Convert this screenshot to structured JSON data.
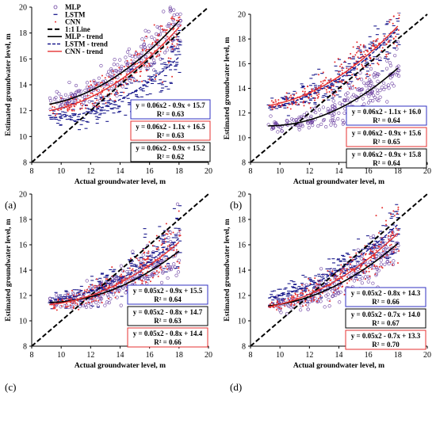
{
  "legend": {
    "markers": [
      {
        "label": "MLP",
        "color": "#6b3fa0",
        "symbol": "circle"
      },
      {
        "label": "LSTM",
        "color": "#1a1a8c",
        "symbol": "dash"
      },
      {
        "label": "CNN",
        "color": "#e53030",
        "symbol": "dot"
      }
    ],
    "lines": [
      {
        "label": "1:1 Line",
        "color": "#000000",
        "dash": "6,3",
        "width": 2
      },
      {
        "label": "MLP - trend",
        "color": "#000000",
        "dash": "",
        "width": 1.6
      },
      {
        "label": "LSTM - trend",
        "color": "#1a1a8c",
        "dash": "4,2",
        "width": 1.4
      },
      {
        "label": "CNN - trend",
        "color": "#e53030",
        "dash": "",
        "width": 1.4
      }
    ]
  },
  "chart_data": [
    {
      "type": "scatter",
      "panel_label": "(a)",
      "xlabel": "Actual groundwater level, m",
      "ylabel": "Estimated groundwater level, m",
      "xlim": [
        8,
        20
      ],
      "ylim": [
        8,
        20
      ],
      "xticks": [
        8,
        10,
        12,
        14,
        16,
        18,
        20
      ],
      "yticks": [
        8,
        10,
        12,
        14,
        16,
        18,
        20
      ],
      "grid": false,
      "show_legend": true,
      "series": [
        {
          "name": "MLP",
          "color": "#6b3fa0",
          "trend": {
            "a": 0.06,
            "b": -0.9,
            "c": 15.7
          },
          "equation": "y = 0.06x2 - 0.9x + 15.7",
          "r2": "R² = 0.63",
          "box_color": "#3030c0"
        },
        {
          "name": "LSTM",
          "color": "#1a1a8c",
          "trend": {
            "a": 0.06,
            "b": -1.1,
            "c": 16.5
          },
          "equation": "y = 0.06x2 - 1.1x + 16.5",
          "r2": "R² = 0.63",
          "box_color": "#e53030"
        },
        {
          "name": "CNN",
          "color": "#e53030",
          "trend": {
            "a": 0.06,
            "b": -0.9,
            "c": 15.2
          },
          "equation": "y = 0.06x2 - 0.9x + 15.2",
          "r2": "R² = 0.62",
          "box_color": "#000000"
        }
      ]
    },
    {
      "type": "scatter",
      "panel_label": "(b)",
      "xlabel": "Actual groundwater level, m",
      "ylabel": "Estimated groundwater level, m",
      "xlim": [
        8,
        20
      ],
      "ylim": [
        8,
        20
      ],
      "xticks": [
        8,
        10,
        12,
        14,
        16,
        18,
        20
      ],
      "yticks": [
        8,
        10,
        12,
        14,
        16,
        18,
        20
      ],
      "grid": false,
      "show_legend": false,
      "series": [
        {
          "name": "MLP",
          "color": "#6b3fa0",
          "trend": {
            "a": 0.06,
            "b": -1.1,
            "c": 16.0
          },
          "equation": "y = 0.06x2 - 1.1x + 16.0",
          "r2": "R² = 0.64",
          "box_color": "#3030c0"
        },
        {
          "name": "LSTM",
          "color": "#1a1a8c",
          "trend": {
            "a": 0.06,
            "b": -0.9,
            "c": 15.6
          },
          "equation": "y = 0.06x2 - 0.9x + 15.6",
          "r2": "R² = 0.65",
          "box_color": "#e53030"
        },
        {
          "name": "CNN",
          "color": "#e53030",
          "trend": {
            "a": 0.06,
            "b": -0.9,
            "c": 15.8
          },
          "equation": "y = 0.06x2 - 0.9x + 15.8",
          "r2": "R² = 0.64",
          "box_color": "#000000"
        }
      ]
    },
    {
      "type": "scatter",
      "panel_label": "(c)",
      "xlabel": "Actual groundwater level, m",
      "ylabel": "Estimated groundwater level, m",
      "xlim": [
        8,
        20
      ],
      "ylim": [
        8,
        20
      ],
      "xticks": [
        8,
        10,
        12,
        14,
        16,
        18,
        20
      ],
      "yticks": [
        8,
        10,
        12,
        14,
        16,
        18,
        20
      ],
      "grid": false,
      "show_legend": false,
      "series": [
        {
          "name": "MLP",
          "color": "#6b3fa0",
          "trend": {
            "a": 0.05,
            "b": -0.9,
            "c": 15.5
          },
          "equation": "y = 0.05x2 - 0.9x + 15.5",
          "r2": "R² = 0.64",
          "box_color": "#3030c0"
        },
        {
          "name": "LSTM",
          "color": "#1a1a8c",
          "trend": {
            "a": 0.05,
            "b": -0.8,
            "c": 14.7
          },
          "equation": "y = 0.05x2 - 0.8x + 14.7",
          "r2": "R² = 0.63",
          "box_color": "#000000"
        },
        {
          "name": "CNN",
          "color": "#e53030",
          "trend": {
            "a": 0.05,
            "b": -0.8,
            "c": 14.4
          },
          "equation": "y = 0.05x2 - 0.8x + 14.4",
          "r2": "R² = 0.66",
          "box_color": "#e53030"
        }
      ]
    },
    {
      "type": "scatter",
      "panel_label": "(d)",
      "xlabel": "Actual groundwater level, m",
      "ylabel": "Estimated groundwater level, m",
      "xlim": [
        8,
        20
      ],
      "ylim": [
        8,
        20
      ],
      "xticks": [
        8,
        10,
        12,
        14,
        16,
        18,
        20
      ],
      "yticks": [
        8,
        10,
        12,
        14,
        16,
        18,
        20
      ],
      "grid": false,
      "show_legend": false,
      "series": [
        {
          "name": "MLP",
          "color": "#6b3fa0",
          "trend": {
            "a": 0.05,
            "b": -0.8,
            "c": 14.3
          },
          "equation": "y = 0.05x2 - 0.8x + 14.3",
          "r2": "R² = 0.66",
          "box_color": "#3030c0"
        },
        {
          "name": "LSTM",
          "color": "#1a1a8c",
          "trend": {
            "a": 0.05,
            "b": -0.7,
            "c": 14.0
          },
          "equation": "y = 0.05x2 - 0.7x + 14.0",
          "r2": "R² = 0.67",
          "box_color": "#000000"
        },
        {
          "name": "CNN",
          "color": "#e53030",
          "trend": {
            "a": 0.05,
            "b": -0.7,
            "c": 13.3
          },
          "equation": "y = 0.05x2 - 0.7x + 13.3",
          "r2": "R² = 0.70",
          "box_color": "#e53030"
        }
      ]
    }
  ]
}
